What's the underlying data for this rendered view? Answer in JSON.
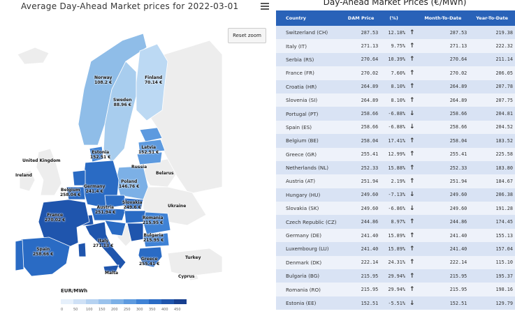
{
  "map": {
    "title": "Average Day-Ahead Market prices for 2022-03-01",
    "menu_icon": "hamburger-menu-icon",
    "reset_zoom_label": "Reset zoom",
    "labels": [
      {
        "name": "Norway",
        "value": "108.2 €"
      },
      {
        "name": "Finland",
        "value": "70.14 €"
      },
      {
        "name": "Sweden",
        "value": "88.96 €"
      },
      {
        "name": "Estonia",
        "value": "152.51 €"
      },
      {
        "name": "Latvia",
        "value": "152.51 €"
      },
      {
        "name": "United Kingdom",
        "value": ""
      },
      {
        "name": "Ireland",
        "value": ""
      },
      {
        "name": "Russia",
        "value": ""
      },
      {
        "name": "Belarus",
        "value": ""
      },
      {
        "name": "Poland",
        "value": "146.76 €"
      },
      {
        "name": "Germany",
        "value": "241.4 €"
      },
      {
        "name": "Belgium",
        "value": "258.04 €"
      },
      {
        "name": "Slovakia",
        "value": "249.6 €"
      },
      {
        "name": "Ukraine",
        "value": ""
      },
      {
        "name": "France",
        "value": "270.02 €"
      },
      {
        "name": "Austria",
        "value": "251.94 €"
      },
      {
        "name": "Romania",
        "value": "215.95 €"
      },
      {
        "name": "Bulgaria",
        "value": "215.95 €"
      },
      {
        "name": "Italy",
        "value": "271.13 €"
      },
      {
        "name": "Spain",
        "value": "258.66 €"
      },
      {
        "name": "Turkey",
        "value": ""
      },
      {
        "name": "Greece",
        "value": "255.41 €"
      },
      {
        "name": "Malta",
        "value": ""
      },
      {
        "name": "Cyprus",
        "value": ""
      }
    ],
    "legend": {
      "title": "EUR/MWh",
      "ticks": [
        "0",
        "50",
        "100",
        "150",
        "200",
        "250",
        "300",
        "350",
        "400",
        "450"
      ],
      "colors": [
        "#e6f0fb",
        "#cfe1f6",
        "#b5d2f1",
        "#9ac2ec",
        "#7cb0e6",
        "#5d9adf",
        "#3f82d5",
        "#2a6bc4",
        "#1f55ad",
        "#173f8f"
      ]
    }
  },
  "table": {
    "title": "Day-Ahead Market Prices (€/MWh)",
    "headers": [
      "Country",
      "DAM Price",
      "(%)",
      "",
      "Month-To-Date",
      "Year-To-Date"
    ],
    "rows": [
      {
        "country": "Switzerland (CH)",
        "price": "287.53",
        "pct": "12.18%",
        "dir": "up",
        "mtd": "287.53",
        "ytd": "219.38"
      },
      {
        "country": "Italy (IT)",
        "price": "271.13",
        "pct": "9.75%",
        "dir": "up",
        "mtd": "271.13",
        "ytd": "222.32"
      },
      {
        "country": "Serbia (RS)",
        "price": "270.64",
        "pct": "10.39%",
        "dir": "up",
        "mtd": "270.64",
        "ytd": "211.14"
      },
      {
        "country": "France (FR)",
        "price": "270.02",
        "pct": "7.60%",
        "dir": "up",
        "mtd": "270.02",
        "ytd": "206.05"
      },
      {
        "country": "Croatia (HR)",
        "price": "264.89",
        "pct": "8.10%",
        "dir": "up",
        "mtd": "264.89",
        "ytd": "207.78"
      },
      {
        "country": "Slovenia (SI)",
        "price": "264.89",
        "pct": "8.10%",
        "dir": "up",
        "mtd": "264.89",
        "ytd": "207.75"
      },
      {
        "country": "Portugal (PT)",
        "price": "258.66",
        "pct": "-6.88%",
        "dir": "down",
        "mtd": "258.66",
        "ytd": "204.81"
      },
      {
        "country": "Spain (ES)",
        "price": "258.66",
        "pct": "-6.88%",
        "dir": "down",
        "mtd": "258.66",
        "ytd": "204.52"
      },
      {
        "country": "Belgium (BE)",
        "price": "258.04",
        "pct": "17.41%",
        "dir": "up",
        "mtd": "258.04",
        "ytd": "183.52"
      },
      {
        "country": "Greece (GR)",
        "price": "255.41",
        "pct": "12.99%",
        "dir": "up",
        "mtd": "255.41",
        "ytd": "225.58"
      },
      {
        "country": "Netherlands (NL)",
        "price": "252.33",
        "pct": "15.88%",
        "dir": "up",
        "mtd": "252.33",
        "ytd": "183.80"
      },
      {
        "country": "Austria (AT)",
        "price": "251.94",
        "pct": "2.19%",
        "dir": "up",
        "mtd": "251.94",
        "ytd": "184.67"
      },
      {
        "country": "Hungary (HU)",
        "price": "249.60",
        "pct": "-7.13%",
        "dir": "down",
        "mtd": "249.60",
        "ytd": "206.38"
      },
      {
        "country": "Slovakia (SK)",
        "price": "249.60",
        "pct": "-6.86%",
        "dir": "down",
        "mtd": "249.60",
        "ytd": "191.28"
      },
      {
        "country": "Czech Republic (CZ)",
        "price": "244.86",
        "pct": "8.97%",
        "dir": "up",
        "mtd": "244.86",
        "ytd": "174.45"
      },
      {
        "country": "Germany (DE)",
        "price": "241.40",
        "pct": "15.89%",
        "dir": "up",
        "mtd": "241.40",
        "ytd": "155.13"
      },
      {
        "country": "Luxembourg (LU)",
        "price": "241.40",
        "pct": "15.89%",
        "dir": "up",
        "mtd": "241.40",
        "ytd": "157.04"
      },
      {
        "country": "Denmark (DK)",
        "price": "222.14",
        "pct": "24.31%",
        "dir": "up",
        "mtd": "222.14",
        "ytd": "115.10"
      },
      {
        "country": "Bulgaria (BG)",
        "price": "215.95",
        "pct": "29.94%",
        "dir": "up",
        "mtd": "215.95",
        "ytd": "195.37"
      },
      {
        "country": "Romania (RO)",
        "price": "215.95",
        "pct": "29.94%",
        "dir": "up",
        "mtd": "215.95",
        "ytd": "198.16"
      },
      {
        "country": "Estonia (EE)",
        "price": "152.51",
        "pct": "-5.51%",
        "dir": "down",
        "mtd": "152.51",
        "ytd": "129.79"
      }
    ],
    "colors": {
      "header_bg": "#2962b8",
      "row_a": "#d9e3f4",
      "row_b": "#eef2fa",
      "positive": "#2ea82e",
      "negative": "#e23b2e"
    },
    "arrow_icons": {
      "up": "arrow-up-icon",
      "down": "arrow-down-icon"
    }
  }
}
